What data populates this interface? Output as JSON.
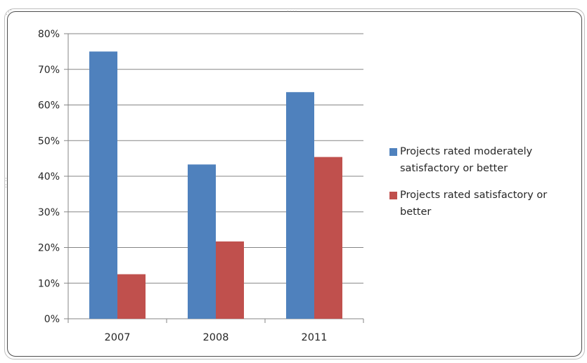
{
  "chart_data": {
    "type": "bar",
    "categories": [
      "2007",
      "2008",
      "2011"
    ],
    "series": [
      {
        "name": "Projects rated moderately satisfactory or better",
        "values": [
          75,
          43.3,
          63.6
        ],
        "color": "#4f81bd"
      },
      {
        "name": "Projects rated satisfactory or better",
        "values": [
          12.5,
          21.7,
          45.4
        ],
        "color": "#c0504d"
      }
    ],
    "ylim": [
      0,
      80
    ],
    "y_ticks": [
      0,
      10,
      20,
      30,
      40,
      50,
      60,
      70,
      80
    ],
    "y_tick_format": "percent",
    "grid": true,
    "legend_position": "right",
    "title": "",
    "xlabel": "",
    "ylabel": ""
  }
}
